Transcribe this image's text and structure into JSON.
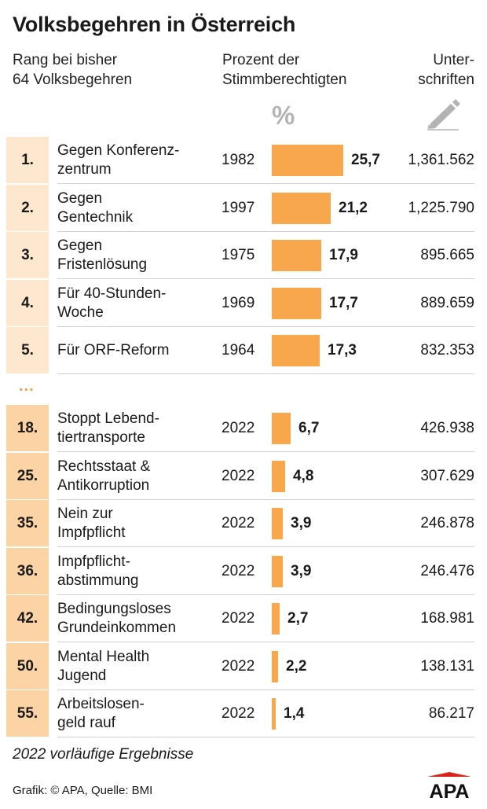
{
  "title": "Volksbegehren in Österreich",
  "headers": {
    "rank": "Rang bei bisher\n64 Volksbegehren",
    "percent": "Prozent der\nStimmberechtigten",
    "signatures": "Unter-\nschriften",
    "percent_symbol": "%"
  },
  "ellipsis": "...",
  "colors": {
    "bar": "#f9a74c",
    "rank_top": "#fde8cf",
    "rank_2022": "#fbd3a5"
  },
  "chart_data": {
    "type": "bar",
    "xlim": [
      0,
      25.7
    ],
    "rows": [
      {
        "rank": "1.",
        "name": "Gegen Konferenz-\nzentrum",
        "year": "1982",
        "percent": 25.7,
        "percent_label": "25,7",
        "signatures": "1,361.562",
        "group": "top"
      },
      {
        "rank": "2.",
        "name": "Gegen\nGentechnik",
        "year": "1997",
        "percent": 21.2,
        "percent_label": "21,2",
        "signatures": "1,225.790",
        "group": "top"
      },
      {
        "rank": "3.",
        "name": "Gegen\nFristenlösung",
        "year": "1975",
        "percent": 17.9,
        "percent_label": "17,9",
        "signatures": "895.665",
        "group": "top"
      },
      {
        "rank": "4.",
        "name": "Für 40-Stunden-\nWoche",
        "year": "1969",
        "percent": 17.7,
        "percent_label": "17,7",
        "signatures": "889.659",
        "group": "top"
      },
      {
        "rank": "5.",
        "name": "Für ORF-Reform",
        "year": "1964",
        "percent": 17.3,
        "percent_label": "17,3",
        "signatures": "832.353",
        "group": "top"
      },
      {
        "rank": "18.",
        "name": "Stoppt Lebend-\ntiertransporte",
        "year": "2022",
        "percent": 6.7,
        "percent_label": "6,7",
        "signatures": "426.938",
        "group": "2022"
      },
      {
        "rank": "25.",
        "name": "Rechtsstaat &\nAntikorruption",
        "year": "2022",
        "percent": 4.8,
        "percent_label": "4,8",
        "signatures": "307.629",
        "group": "2022"
      },
      {
        "rank": "35.",
        "name": "Nein zur\nImpfpflicht",
        "year": "2022",
        "percent": 3.9,
        "percent_label": "3,9",
        "signatures": "246.878",
        "group": "2022"
      },
      {
        "rank": "36.",
        "name": "Impfpflicht-\nabstimmung",
        "year": "2022",
        "percent": 3.9,
        "percent_label": "3,9",
        "signatures": "246.476",
        "group": "2022"
      },
      {
        "rank": "42.",
        "name": "Bedingungsloses\nGrundeinkommen",
        "year": "2022",
        "percent": 2.7,
        "percent_label": "2,7",
        "signatures": "168.981",
        "group": "2022"
      },
      {
        "rank": "50.",
        "name": "Mental Health\nJugend",
        "year": "2022",
        "percent": 2.2,
        "percent_label": "2,2",
        "signatures": "138.131",
        "group": "2022"
      },
      {
        "rank": "55.",
        "name": "Arbeitslosen-\ngeld rauf",
        "year": "2022",
        "percent": 1.4,
        "percent_label": "1,4",
        "signatures": "86.217",
        "group": "2022"
      }
    ]
  },
  "note": "2022 vorläufige Ergebnisse",
  "source": "Grafik: © APA, Quelle: BMI",
  "logo_text": "APA",
  "icons": {
    "percent": "percent-icon",
    "signatures": "pencil-icon"
  }
}
